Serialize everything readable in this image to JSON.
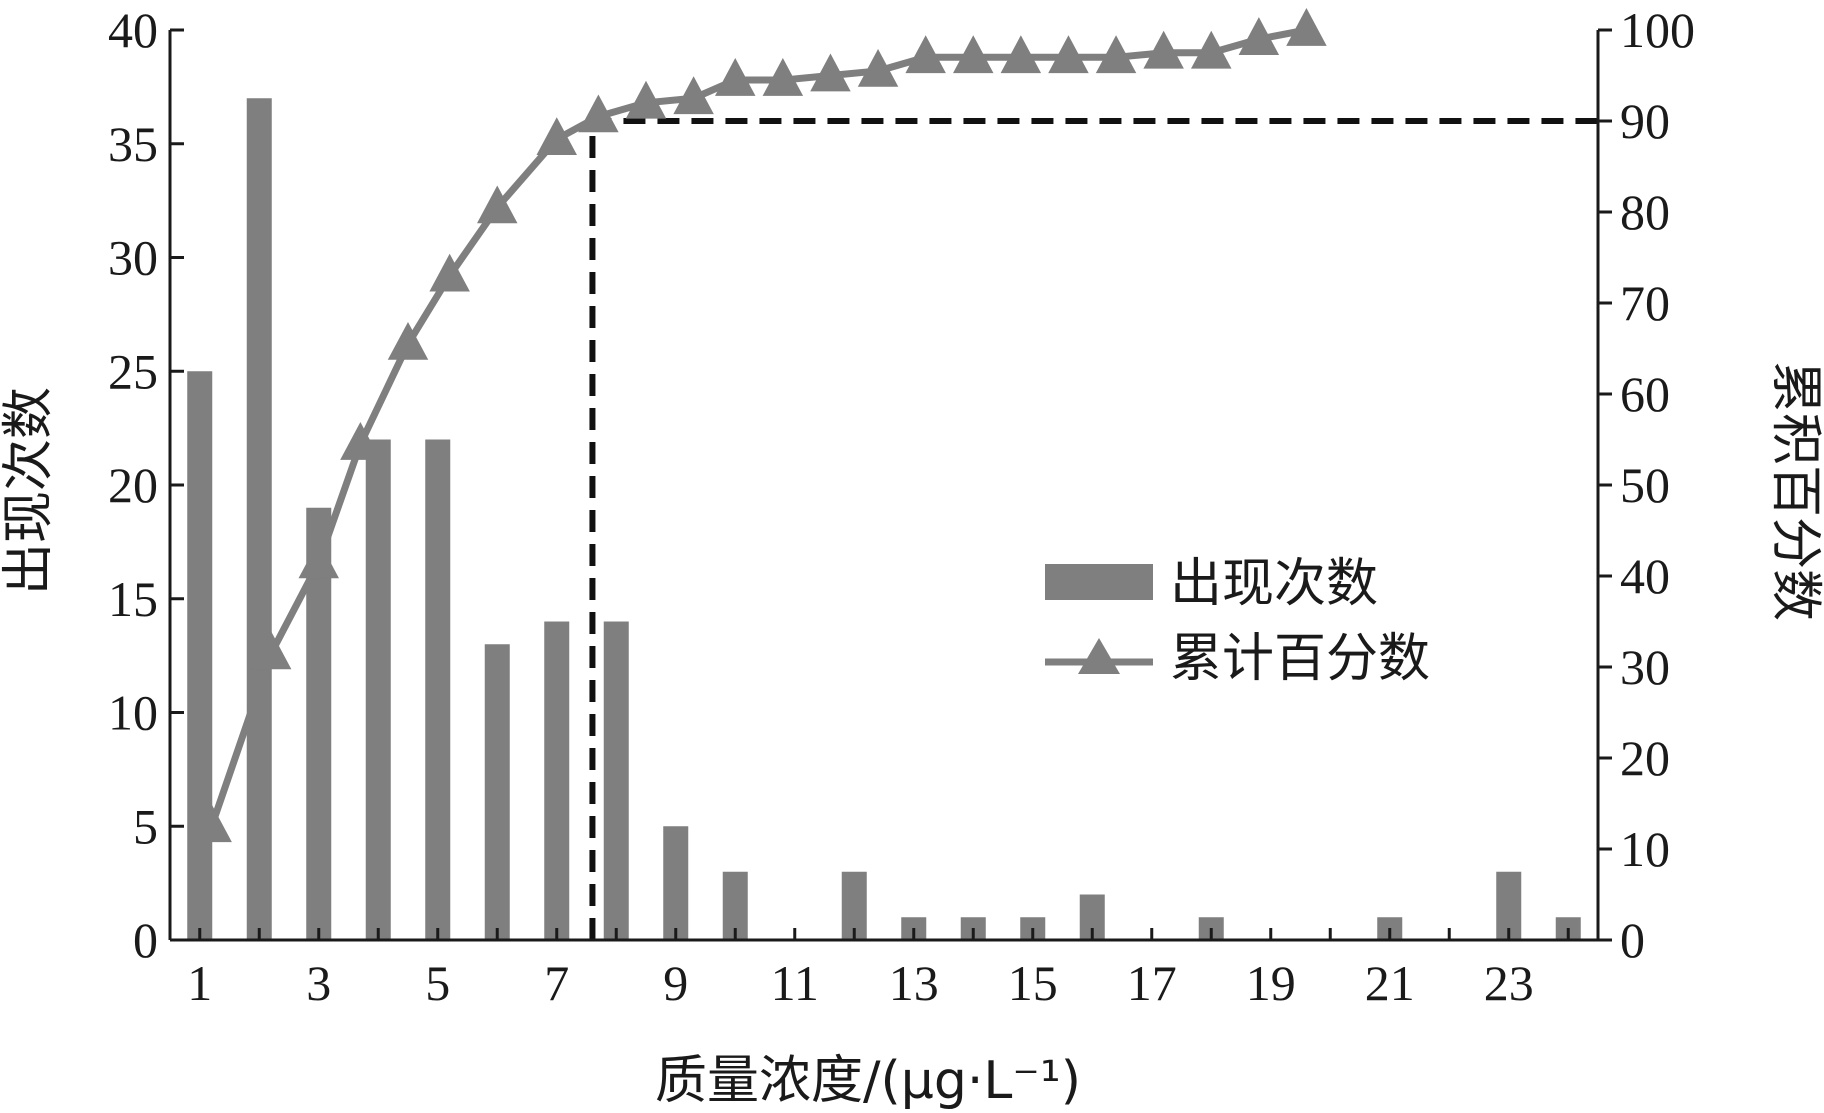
{
  "chart_data": {
    "type": "bar",
    "categories": [
      1,
      2,
      3,
      4,
      5,
      6,
      7,
      8,
      9,
      10,
      11,
      12,
      13,
      14,
      15,
      16,
      17,
      18,
      19,
      20,
      21,
      22,
      23,
      24
    ],
    "series": [
      {
        "name": "出现次数",
        "type": "bar",
        "axis": "left",
        "color": "#7f7f7f",
        "values": [
          25,
          37,
          19,
          22,
          22,
          13,
          14,
          14,
          5,
          3,
          0,
          3,
          1,
          1,
          1,
          2,
          0,
          1,
          0,
          0,
          1,
          0,
          3,
          1
        ]
      },
      {
        "name": "累计百分数",
        "type": "line",
        "axis": "right",
        "marker": "triangle",
        "color": "#7f7f7f",
        "x": [
          1.2,
          2.2,
          3,
          3.7,
          4.5,
          5.2,
          6,
          7,
          7.7,
          8.5,
          9.3,
          10,
          10.8,
          11.6,
          12.4,
          13.2,
          14,
          14.8,
          15.6,
          16.4,
          17.2,
          18,
          18.8,
          19.6
        ],
        "values": [
          12.5,
          31.5,
          41.5,
          54.5,
          65.5,
          73,
          80.5,
          88,
          90.5,
          92,
          92.5,
          94.5,
          94.5,
          95,
          95.5,
          97,
          97,
          97,
          97,
          97,
          97.5,
          97.5,
          99,
          100
        ]
      }
    ],
    "xlabel": "质量浓度/(μg·L⁻¹)",
    "ylabel": "出现次数",
    "ylabel_right": "累积百分数",
    "xlim": [
      0.5,
      24.5
    ],
    "ylim": [
      0,
      40
    ],
    "ylim_right": [
      0,
      100
    ],
    "x_ticks": [
      1,
      3,
      5,
      7,
      9,
      11,
      13,
      15,
      17,
      19,
      21,
      23
    ],
    "y_ticks": [
      0,
      5,
      10,
      15,
      20,
      25,
      30,
      35,
      40
    ],
    "y_ticks_right": [
      0,
      10,
      20,
      30,
      40,
      50,
      60,
      70,
      80,
      90,
      100
    ],
    "reference_line": {
      "x": 7.6,
      "y_right": 90,
      "style": "dashed",
      "color": "#111111"
    },
    "grid": false,
    "legend": {
      "placement": "center-right",
      "items": [
        {
          "label": "出现次数",
          "kind": "bar"
        },
        {
          "label": "累计百分数",
          "kind": "line-triangle"
        }
      ]
    }
  }
}
